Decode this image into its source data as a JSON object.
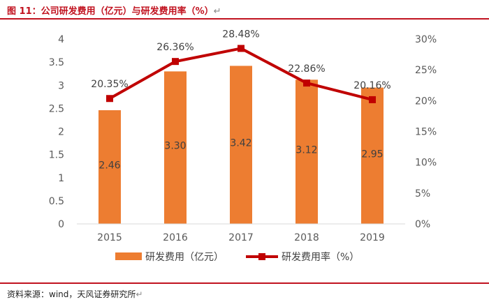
{
  "header": {
    "title": "图 11：公司研发费用（亿元）与研发费用率（%）",
    "return_mark": "↵"
  },
  "footer": {
    "source": "资料来源：wind，天风证券研究所",
    "return_mark": "↵"
  },
  "colors": {
    "bar": "#ed7d31",
    "line": "#c00000",
    "rule": "#c1121f",
    "axis_text": "#595959"
  },
  "chart_data": {
    "type": "bar+line",
    "title": "公司研发费用（亿元）与研发费用率（%）",
    "categories": [
      "2015",
      "2016",
      "2017",
      "2018",
      "2019"
    ],
    "series": [
      {
        "name": "研发费用（亿元）",
        "type": "bar",
        "axis": "left",
        "values": [
          2.46,
          3.3,
          3.42,
          3.12,
          2.95
        ],
        "labels": [
          "2.46",
          "3.30",
          "3.42",
          "3.12",
          "2.95"
        ]
      },
      {
        "name": "研发费用率（%）",
        "type": "line",
        "axis": "right",
        "values": [
          20.35,
          26.36,
          28.48,
          22.86,
          20.16
        ],
        "labels": [
          "20.35%",
          "26.36%",
          "28.48%",
          "22.86%",
          "20.16%"
        ]
      }
    ],
    "y_left": {
      "min": 0,
      "max": 4,
      "ticks": [
        0,
        0.5,
        1,
        1.5,
        2,
        2.5,
        3,
        3.5,
        4
      ],
      "tick_labels": [
        "0",
        "0.5",
        "1",
        "1.5",
        "2",
        "2.5",
        "3",
        "3.5",
        "4"
      ]
    },
    "y_right": {
      "min": 0,
      "max": 30,
      "ticks": [
        0,
        5,
        10,
        15,
        20,
        25,
        30
      ],
      "tick_labels": [
        "0%",
        "5%",
        "10%",
        "15%",
        "20%",
        "25%",
        "30%"
      ]
    },
    "legend": {
      "position": "bottom",
      "items": [
        "研发费用（亿元）",
        "研发费用率（%）"
      ]
    },
    "grid": false
  }
}
